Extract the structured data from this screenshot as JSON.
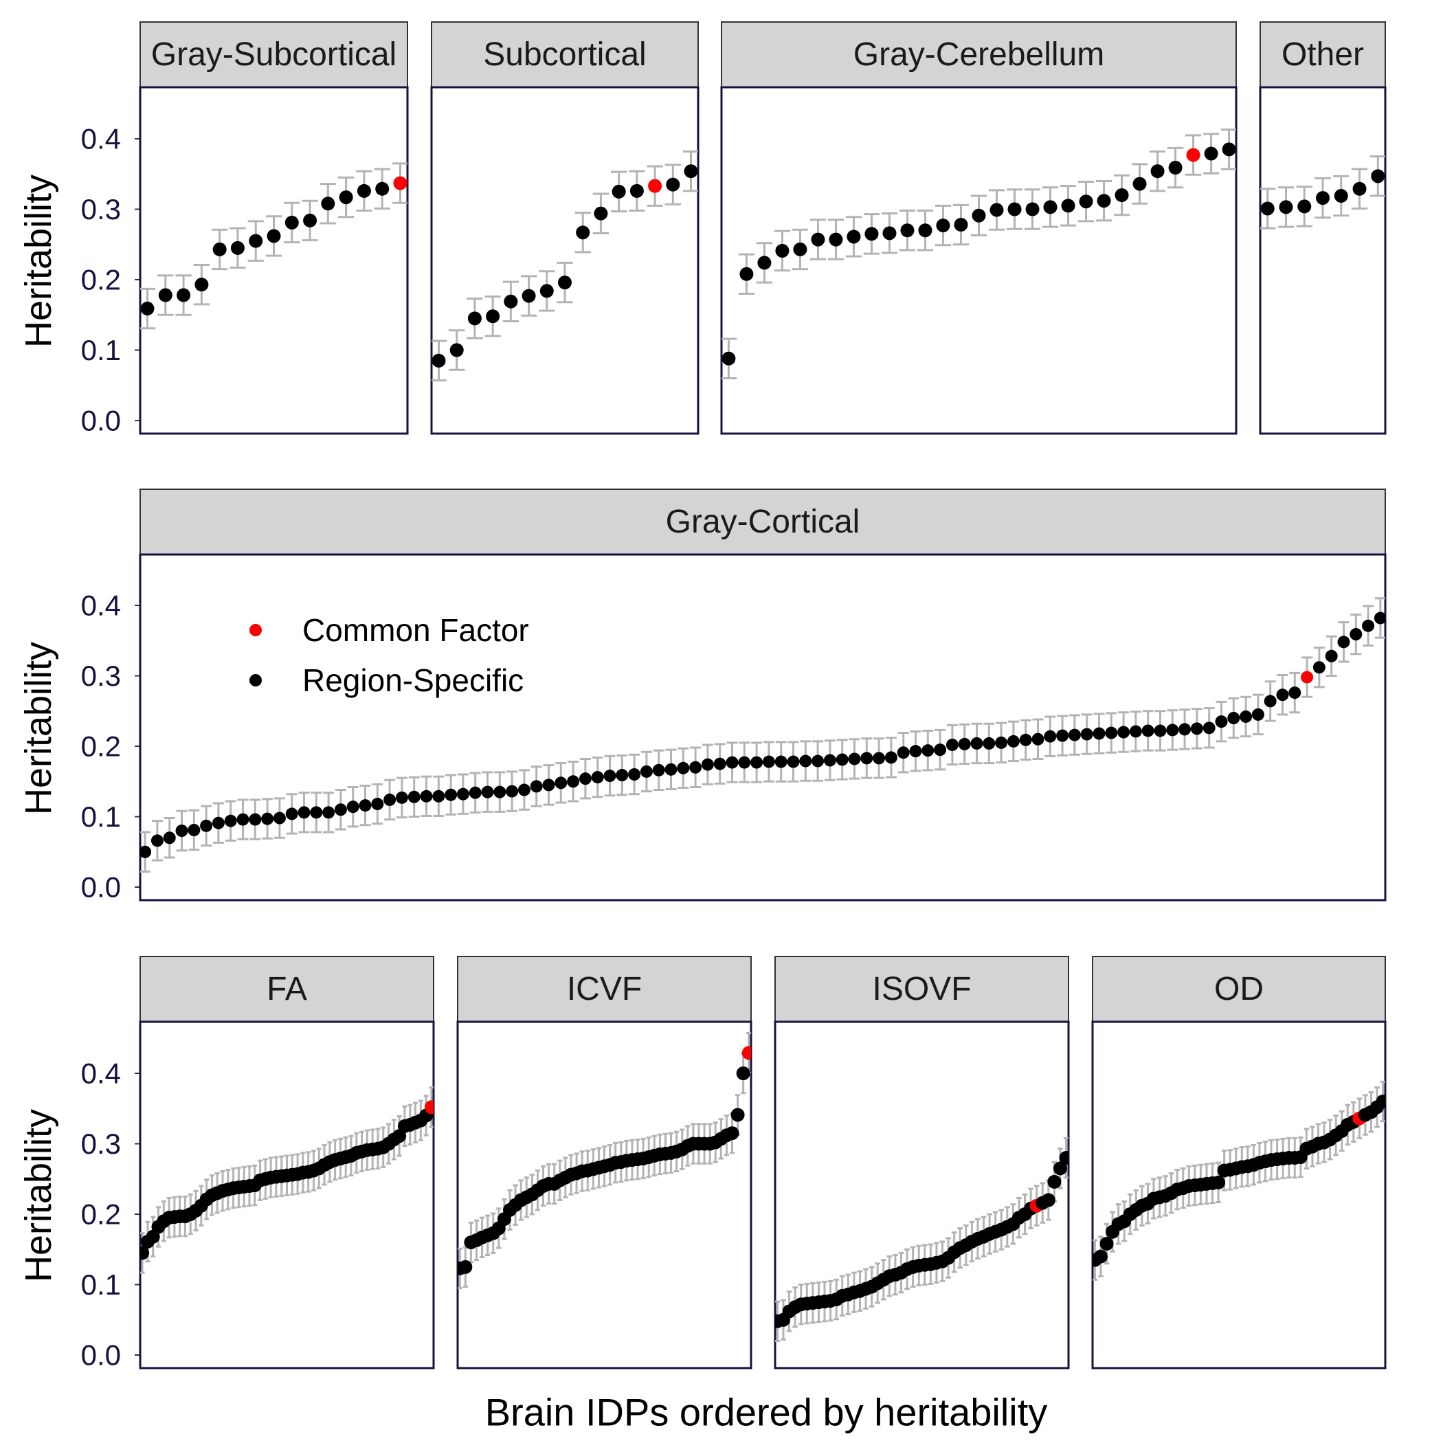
{
  "chart_data": {
    "type": "scatter",
    "xlabel": "Brain IDPs ordered by heritability",
    "ylabel": "Heritability",
    "ylim": [
      0,
      0.45
    ],
    "yticks": [
      "0.0",
      "0.1",
      "0.2",
      "0.3",
      "0.4"
    ],
    "legend": {
      "placement": "top-left of Gray-Cortical panel",
      "entries": [
        {
          "label": "Common Factor",
          "color": "#ff0000"
        },
        {
          "label": "Region-Specific",
          "color": "#000000"
        }
      ]
    },
    "colors": {
      "common": "#ff0000",
      "region": "#000000",
      "errorbar": "#b3b3b3",
      "strip": "#d4d4d4"
    },
    "panels": [
      {
        "name": "Gray-Subcortical",
        "values": [
          0.159,
          0.178,
          0.178,
          0.193,
          0.243,
          0.245,
          0.255,
          0.262,
          0.281,
          0.284,
          0.308,
          0.317,
          0.326,
          0.329,
          0.337
        ],
        "se": 0.028,
        "common_index": 14
      },
      {
        "name": "Subcortical",
        "values": [
          0.085,
          0.1,
          0.145,
          0.148,
          0.169,
          0.177,
          0.184,
          0.196,
          0.267,
          0.294,
          0.325,
          0.326,
          0.333,
          0.335,
          0.354
        ],
        "se": 0.028,
        "common_index": 12
      },
      {
        "name": "Gray-Cerebellum",
        "values": [
          0.088,
          0.208,
          0.224,
          0.241,
          0.243,
          0.257,
          0.257,
          0.261,
          0.265,
          0.266,
          0.27,
          0.27,
          0.277,
          0.278,
          0.291,
          0.299,
          0.3,
          0.3,
          0.303,
          0.305,
          0.311,
          0.312,
          0.32,
          0.336,
          0.354,
          0.359,
          0.377,
          0.379,
          0.385
        ],
        "se": 0.028,
        "common_index": 26
      },
      {
        "name": "Other",
        "values": [
          0.301,
          0.303,
          0.304,
          0.316,
          0.319,
          0.329,
          0.347
        ],
        "se": 0.028,
        "common_index": -1
      },
      {
        "name": "Gray-Cortical",
        "values": [
          0.05,
          0.066,
          0.07,
          0.08,
          0.081,
          0.087,
          0.091,
          0.094,
          0.096,
          0.096,
          0.097,
          0.098,
          0.104,
          0.106,
          0.106,
          0.106,
          0.11,
          0.114,
          0.116,
          0.118,
          0.124,
          0.127,
          0.128,
          0.129,
          0.129,
          0.131,
          0.132,
          0.134,
          0.135,
          0.135,
          0.136,
          0.138,
          0.143,
          0.145,
          0.148,
          0.15,
          0.154,
          0.156,
          0.158,
          0.159,
          0.16,
          0.164,
          0.166,
          0.167,
          0.169,
          0.17,
          0.174,
          0.175,
          0.177,
          0.177,
          0.177,
          0.178,
          0.178,
          0.178,
          0.179,
          0.179,
          0.18,
          0.181,
          0.182,
          0.183,
          0.183,
          0.184,
          0.191,
          0.193,
          0.194,
          0.195,
          0.202,
          0.203,
          0.204,
          0.204,
          0.205,
          0.207,
          0.209,
          0.21,
          0.214,
          0.215,
          0.216,
          0.217,
          0.218,
          0.219,
          0.22,
          0.221,
          0.222,
          0.222,
          0.223,
          0.224,
          0.225,
          0.226,
          0.235,
          0.24,
          0.242,
          0.245,
          0.264,
          0.273,
          0.276,
          0.298,
          0.312,
          0.328,
          0.348,
          0.359,
          0.371,
          0.382
        ],
        "se": 0.028,
        "common_index": 95
      },
      {
        "name": "FA",
        "values": [
          0.145,
          0.161,
          0.168,
          0.182,
          0.19,
          0.195,
          0.196,
          0.197,
          0.197,
          0.2,
          0.205,
          0.212,
          0.221,
          0.227,
          0.23,
          0.233,
          0.235,
          0.237,
          0.238,
          0.239,
          0.24,
          0.241,
          0.248,
          0.25,
          0.252,
          0.253,
          0.254,
          0.255,
          0.256,
          0.257,
          0.259,
          0.26,
          0.262,
          0.265,
          0.27,
          0.274,
          0.277,
          0.279,
          0.281,
          0.283,
          0.287,
          0.289,
          0.291,
          0.292,
          0.293,
          0.295,
          0.3,
          0.306,
          0.311,
          0.325,
          0.327,
          0.33,
          0.333,
          0.34,
          0.352
        ],
        "se": 0.028,
        "common_index": 54
      },
      {
        "name": "ICVF",
        "values": [
          0.123,
          0.125,
          0.16,
          0.163,
          0.167,
          0.17,
          0.173,
          0.18,
          0.193,
          0.206,
          0.213,
          0.22,
          0.224,
          0.228,
          0.234,
          0.24,
          0.243,
          0.243,
          0.248,
          0.252,
          0.256,
          0.258,
          0.261,
          0.262,
          0.264,
          0.266,
          0.268,
          0.27,
          0.273,
          0.274,
          0.276,
          0.277,
          0.278,
          0.279,
          0.281,
          0.283,
          0.285,
          0.286,
          0.287,
          0.289,
          0.292,
          0.297,
          0.3,
          0.3,
          0.3,
          0.3,
          0.302,
          0.307,
          0.312,
          0.315,
          0.341,
          0.4,
          0.429
        ],
        "se": 0.028,
        "common_index": 52
      },
      {
        "name": "ISOVF",
        "values": [
          0.048,
          0.05,
          0.062,
          0.068,
          0.072,
          0.073,
          0.074,
          0.075,
          0.076,
          0.077,
          0.079,
          0.084,
          0.086,
          0.089,
          0.091,
          0.094,
          0.097,
          0.102,
          0.107,
          0.112,
          0.114,
          0.117,
          0.122,
          0.125,
          0.127,
          0.128,
          0.129,
          0.131,
          0.133,
          0.138,
          0.146,
          0.152,
          0.156,
          0.161,
          0.165,
          0.168,
          0.172,
          0.175,
          0.178,
          0.182,
          0.186,
          0.195,
          0.2,
          0.208,
          0.212,
          0.216,
          0.22,
          0.246,
          0.265,
          0.28
        ],
        "se": 0.028,
        "common_index": 44
      },
      {
        "name": "OD",
        "values": [
          0.135,
          0.14,
          0.158,
          0.175,
          0.186,
          0.19,
          0.2,
          0.206,
          0.212,
          0.215,
          0.222,
          0.224,
          0.226,
          0.23,
          0.235,
          0.237,
          0.24,
          0.241,
          0.242,
          0.243,
          0.244,
          0.245,
          0.262,
          0.263,
          0.265,
          0.267,
          0.268,
          0.27,
          0.273,
          0.275,
          0.277,
          0.278,
          0.279,
          0.28,
          0.28,
          0.281,
          0.293,
          0.296,
          0.3,
          0.302,
          0.306,
          0.312,
          0.318,
          0.327,
          0.331,
          0.336,
          0.341,
          0.345,
          0.352,
          0.36
        ],
        "se": 0.028,
        "common_index": 45
      }
    ]
  }
}
